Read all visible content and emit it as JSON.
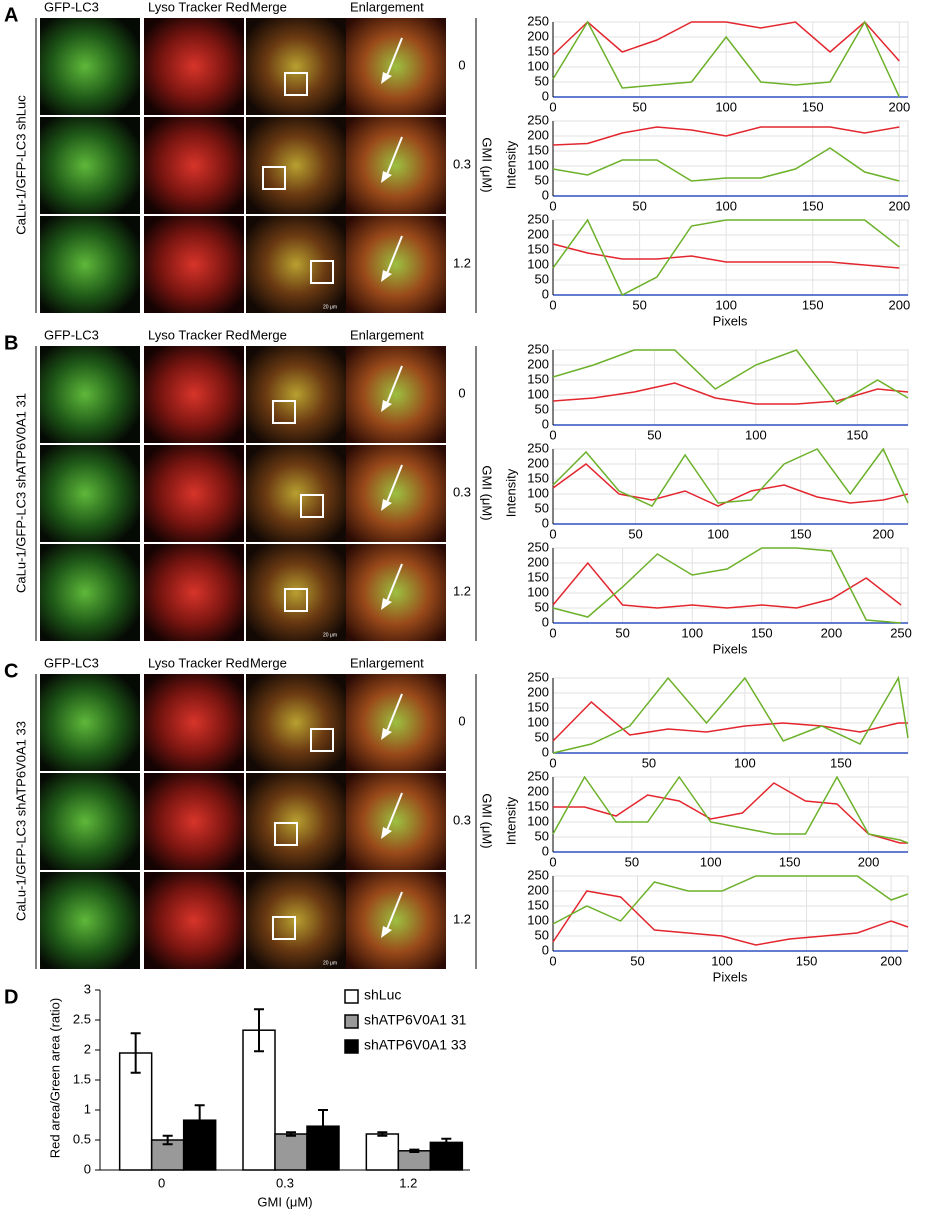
{
  "panels": [
    {
      "letter": "A",
      "cell_line_label": "CaLu-1/GFP-LC3 shLuc",
      "column_headers": [
        "GFP-LC3",
        "Lyso Tracker Red",
        "Merge",
        "Enlargement"
      ],
      "doses": [
        "0",
        "0.3",
        "1.2"
      ],
      "dose_axis_label": "GMI (μM)",
      "scale_bar": "20 μm",
      "profiles": {
        "y_label": "Intensity",
        "x_label": "Pixels",
        "plots": [
          {
            "type": "line",
            "xlim": [
              0,
              205
            ],
            "xticks": [
              0,
              50,
              100,
              150,
              200
            ],
            "ylim": [
              0,
              250
            ],
            "yticks": [
              0,
              50,
              100,
              150,
              200,
              250
            ],
            "x": [
              0,
              20,
              40,
              60,
              80,
              100,
              120,
              140,
              160,
              180,
              200
            ],
            "series": [
              {
                "color": "#e3262e",
                "values": [
                  140,
                  250,
                  150,
                  190,
                  250,
                  250,
                  230,
                  250,
                  150,
                  250,
                  120
                ]
              },
              {
                "color": "#6cb12a",
                "values": [
                  60,
                  250,
                  30,
                  40,
                  50,
                  200,
                  50,
                  40,
                  50,
                  250,
                  0
                ]
              }
            ]
          },
          {
            "type": "line",
            "xlim": [
              0,
              205
            ],
            "xticks": [
              0,
              50,
              100,
              150,
              200
            ],
            "ylim": [
              0,
              250
            ],
            "yticks": [
              0,
              50,
              100,
              150,
              200,
              250
            ],
            "x": [
              0,
              20,
              40,
              60,
              80,
              100,
              120,
              140,
              160,
              180,
              200
            ],
            "series": [
              {
                "color": "#e3262e",
                "values": [
                  170,
                  175,
                  210,
                  230,
                  220,
                  200,
                  230,
                  230,
                  230,
                  210,
                  230
                ]
              },
              {
                "color": "#6cb12a",
                "values": [
                  90,
                  70,
                  120,
                  120,
                  50,
                  60,
                  60,
                  90,
                  160,
                  80,
                  50
                ]
              }
            ]
          },
          {
            "type": "line",
            "xlim": [
              0,
              205
            ],
            "xticks": [
              0,
              50,
              100,
              150,
              200
            ],
            "ylim": [
              0,
              250
            ],
            "yticks": [
              0,
              50,
              100,
              150,
              200,
              250
            ],
            "x": [
              0,
              20,
              40,
              60,
              80,
              100,
              120,
              140,
              160,
              180,
              200
            ],
            "series": [
              {
                "color": "#e3262e",
                "values": [
                  170,
                  140,
                  120,
                  120,
                  130,
                  110,
                  110,
                  110,
                  110,
                  100,
                  90
                ]
              },
              {
                "color": "#6cb12a",
                "values": [
                  90,
                  250,
                  0,
                  60,
                  230,
                  250,
                  250,
                  250,
                  250,
                  250,
                  160
                ]
              }
            ]
          }
        ]
      }
    },
    {
      "letter": "B",
      "cell_line_label": "CaLu-1/GFP-LC3 shATP6V0A1 31",
      "column_headers": [
        "GFP-LC3",
        "Lyso Tracker Red",
        "Merge",
        "Enlargement"
      ],
      "doses": [
        "0",
        "0.3",
        "1.2"
      ],
      "dose_axis_label": "GMI (μM)",
      "scale_bar": "20 μm",
      "profiles": {
        "y_label": "Intensity",
        "x_label": "Pixels",
        "plots": [
          {
            "type": "line",
            "xlim": [
              0,
              175
            ],
            "xticks": [
              0,
              50,
              100,
              150
            ],
            "ylim": [
              0,
              250
            ],
            "yticks": [
              0,
              50,
              100,
              150,
              200,
              250
            ],
            "x": [
              0,
              20,
              40,
              60,
              80,
              100,
              120,
              140,
              160,
              175
            ],
            "series": [
              {
                "color": "#e3262e",
                "values": [
                  80,
                  90,
                  110,
                  140,
                  90,
                  70,
                  70,
                  80,
                  120,
                  110
                ]
              },
              {
                "color": "#6cb12a",
                "values": [
                  160,
                  200,
                  250,
                  250,
                  120,
                  200,
                  250,
                  70,
                  150,
                  90
                ]
              }
            ]
          },
          {
            "type": "line",
            "xlim": [
              0,
              215
            ],
            "xticks": [
              0,
              50,
              100,
              150,
              200
            ],
            "ylim": [
              0,
              250
            ],
            "yticks": [
              0,
              50,
              100,
              150,
              200,
              250
            ],
            "x": [
              0,
              20,
              40,
              60,
              80,
              100,
              120,
              140,
              160,
              180,
              200,
              215
            ],
            "series": [
              {
                "color": "#e3262e",
                "values": [
                  120,
                  200,
                  100,
                  80,
                  110,
                  60,
                  110,
                  130,
                  90,
                  70,
                  80,
                  100
                ]
              },
              {
                "color": "#6cb12a",
                "values": [
                  130,
                  240,
                  110,
                  60,
                  230,
                  70,
                  80,
                  200,
                  250,
                  100,
                  250,
                  70
                ]
              }
            ]
          },
          {
            "type": "line",
            "xlim": [
              0,
              255
            ],
            "xticks": [
              0,
              50,
              100,
              150,
              200,
              250
            ],
            "ylim": [
              0,
              250
            ],
            "yticks": [
              0,
              50,
              100,
              150,
              200,
              250
            ],
            "x": [
              0,
              25,
              50,
              75,
              100,
              125,
              150,
              175,
              200,
              225,
              250
            ],
            "series": [
              {
                "color": "#e3262e",
                "values": [
                  60,
                  200,
                  60,
                  50,
                  60,
                  50,
                  60,
                  50,
                  80,
                  150,
                  60
                ]
              },
              {
                "color": "#6cb12a",
                "values": [
                  50,
                  20,
                  120,
                  230,
                  160,
                  180,
                  250,
                  250,
                  240,
                  10,
                  0
                ]
              }
            ]
          }
        ]
      }
    },
    {
      "letter": "C",
      "cell_line_label": "CaLu-1/GFP-LC3 shATP6V0A1 33",
      "column_headers": [
        "GFP-LC3",
        "Lyso Tracker Red",
        "Merge",
        "Enlargement"
      ],
      "doses": [
        "0",
        "0.3",
        "1.2"
      ],
      "dose_axis_label": "GMI (μM)",
      "scale_bar": "20 μm",
      "profiles": {
        "y_label": "Intensity",
        "x_label": "Pixels",
        "plots": [
          {
            "type": "line",
            "xlim": [
              0,
              185
            ],
            "xticks": [
              0,
              50,
              100,
              150
            ],
            "ylim": [
              0,
              250
            ],
            "yticks": [
              0,
              50,
              100,
              150,
              200,
              250
            ],
            "x": [
              0,
              20,
              40,
              60,
              80,
              100,
              120,
              140,
              160,
              180,
              185
            ],
            "series": [
              {
                "color": "#e3262e",
                "values": [
                  40,
                  170,
                  60,
                  80,
                  70,
                  90,
                  100,
                  90,
                  70,
                  100,
                  100
                ]
              },
              {
                "color": "#6cb12a",
                "values": [
                  0,
                  30,
                  90,
                  250,
                  100,
                  250,
                  40,
                  90,
                  30,
                  250,
                  50
                ]
              }
            ]
          },
          {
            "type": "line",
            "xlim": [
              0,
              225
            ],
            "xticks": [
              0,
              50,
              100,
              150,
              200
            ],
            "ylim": [
              0,
              250
            ],
            "yticks": [
              0,
              50,
              100,
              150,
              200,
              250
            ],
            "x": [
              0,
              20,
              40,
              60,
              80,
              100,
              120,
              140,
              160,
              180,
              200,
              220,
              225
            ],
            "series": [
              {
                "color": "#e3262e",
                "values": [
                  150,
                  150,
                  120,
                  190,
                  170,
                  110,
                  130,
                  230,
                  170,
                  160,
                  60,
                  30,
                  30
                ]
              },
              {
                "color": "#6cb12a",
                "values": [
                  60,
                  250,
                  100,
                  100,
                  250,
                  100,
                  80,
                  60,
                  60,
                  250,
                  60,
                  40,
                  30
                ]
              }
            ]
          },
          {
            "type": "line",
            "xlim": [
              0,
              210
            ],
            "xticks": [
              0,
              50,
              100,
              150,
              200
            ],
            "ylim": [
              0,
              250
            ],
            "yticks": [
              0,
              50,
              100,
              150,
              200,
              250
            ],
            "x": [
              0,
              20,
              40,
              60,
              80,
              100,
              120,
              140,
              160,
              180,
              200,
              210
            ],
            "series": [
              {
                "color": "#e3262e",
                "values": [
                  30,
                  200,
                  180,
                  70,
                  60,
                  50,
                  20,
                  40,
                  50,
                  60,
                  100,
                  80
                ]
              },
              {
                "color": "#6cb12a",
                "values": [
                  90,
                  150,
                  100,
                  230,
                  200,
                  200,
                  250,
                  250,
                  250,
                  250,
                  170,
                  190
                ]
              }
            ]
          }
        ]
      }
    }
  ],
  "chart_data": {
    "type": "bar",
    "letter": "D",
    "y_label": "Red area/Green area (ratio)",
    "x_label": "GMI (μM)",
    "categories": [
      "0",
      "0.3",
      "1.2"
    ],
    "ylim": [
      0,
      3
    ],
    "yticks": [
      0,
      0.5,
      1,
      1.5,
      2,
      2.5,
      3
    ],
    "series": [
      {
        "name": "shLuc",
        "color": "#ffffff",
        "values": [
          1.95,
          2.33,
          0.6
        ],
        "errors": [
          0.33,
          0.35,
          0.03
        ]
      },
      {
        "name": "shATP6V0A1 31",
        "color": "#999999",
        "values": [
          0.5,
          0.6,
          0.32
        ],
        "errors": [
          0.07,
          0.03,
          0.02
        ]
      },
      {
        "name": "shATP6V0A1 33",
        "color": "#000000",
        "values": [
          0.83,
          0.73,
          0.46
        ],
        "errors": [
          0.25,
          0.27,
          0.06
        ]
      }
    ]
  }
}
